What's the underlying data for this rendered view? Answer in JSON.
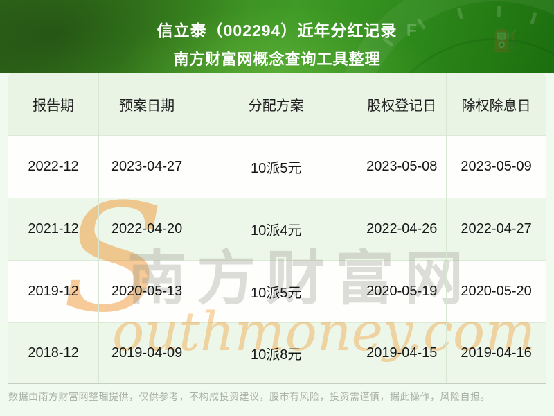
{
  "page": {
    "background": "#f1faee"
  },
  "header": {
    "title": "信立泰（002294）近年分红记录",
    "subtitle": "南方财富网概念查询工具整理",
    "decor": {
      "gauge_label": "F",
      "fuel_pump_icon": "⛽"
    }
  },
  "chart_data": {
    "type": "table",
    "title": "信立泰（002294）近年分红记录",
    "subtitle": "南方财富网概念查询工具整理",
    "columns": [
      "报告期",
      "预案日期",
      "分配方案",
      "股权登记日",
      "除权除息日"
    ],
    "rows": [
      [
        "2022-12",
        "2023-04-27",
        "10派5元",
        "2023-05-08",
        "2023-05-09"
      ],
      [
        "2021-12",
        "2022-04-20",
        "10派4元",
        "2022-04-26",
        "2022-04-27"
      ],
      [
        "2019-12",
        "2020-05-13",
        "10派5元",
        "2020-05-19",
        "2020-05-20"
      ],
      [
        "2018-12",
        "2019-04-09",
        "10派8元",
        "2019-04-15",
        "2019-04-16"
      ]
    ]
  },
  "watermark": {
    "initial": "S",
    "cjk": "南方财富网",
    "latin": "outhmoney.com"
  },
  "footer": {
    "disclaimer": "数据由南方财富网整理提供，仅供参考，不构成投资建议，股市有风险，投资需谨慎，据此操作，风险自担。"
  },
  "colors": {
    "header_green_dark": "#1c6e0e",
    "header_green": "#3c8a20",
    "header_green_light": "#3f9a26",
    "thead_bg": "#e9f4e4",
    "row_white": "#fefffd",
    "row_alt": "#edf7e9",
    "grid_line": "#d8e7d2",
    "watermark_orange": "#f7cc9c",
    "watermark_gray": "#e0e0dc",
    "footer_text": "#a9b2a6"
  }
}
